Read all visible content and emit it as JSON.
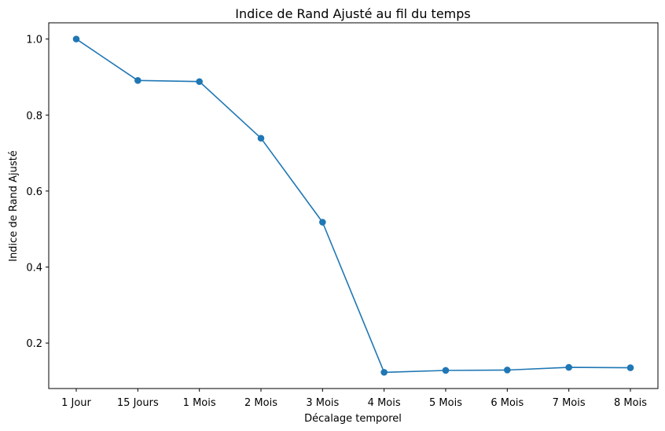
{
  "chart_data": {
    "type": "line",
    "title": "Indice de Rand Ajusté au fil du temps",
    "xlabel": "Décalage temporel",
    "ylabel": "Indice de Rand Ajusté",
    "categories": [
      "1 Jour",
      "15 Jours",
      "1 Mois",
      "2 Mois",
      "3 Mois",
      "4 Mois",
      "5 Mois",
      "6 Mois",
      "7 Mois",
      "8 Mois"
    ],
    "series": [
      {
        "values": [
          1.0,
          0.891,
          0.888,
          0.739,
          0.518,
          0.123,
          0.128,
          0.129,
          0.136,
          0.135
        ],
        "color": "#1f77b4",
        "marker": "circle"
      }
    ],
    "yticks": [
      0.2,
      0.4,
      0.6,
      0.8,
      1.0
    ],
    "ytick_labels": [
      "0.2",
      "0.4",
      "0.6",
      "0.8",
      "1.0"
    ],
    "ylim": [
      0.0803,
      1.0427
    ],
    "grid": false,
    "legend": false
  }
}
